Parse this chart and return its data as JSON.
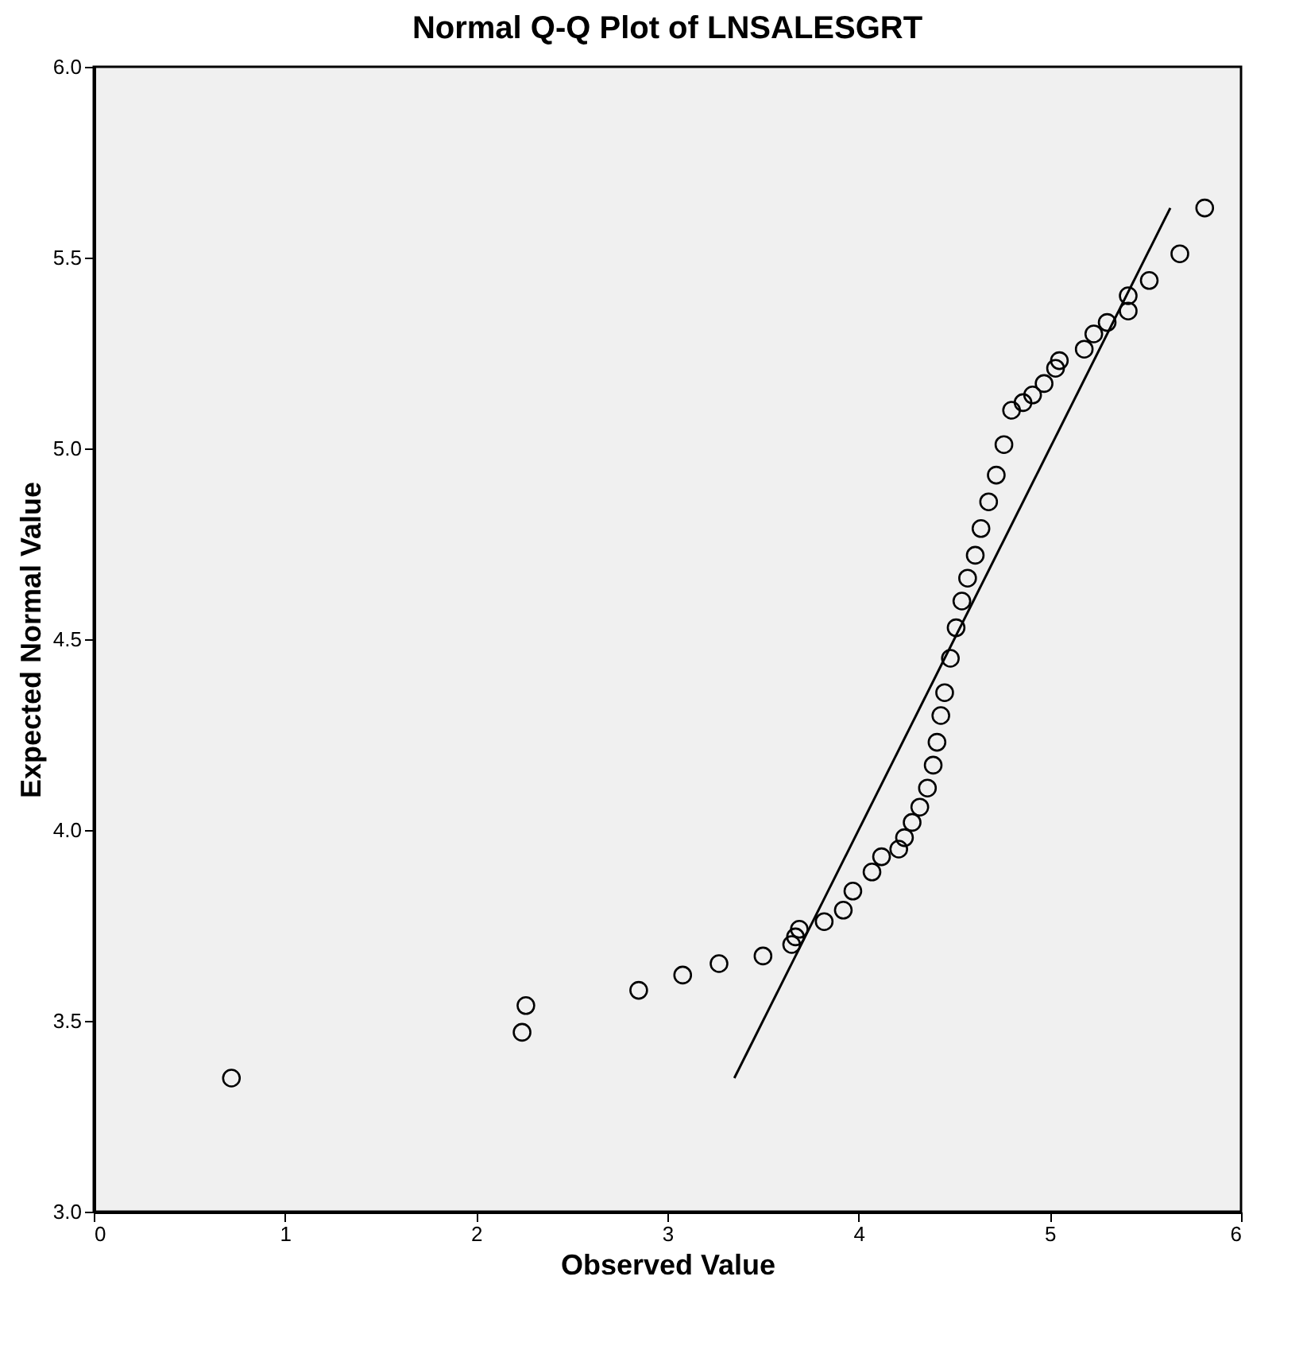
{
  "chart_data": {
    "type": "scatter",
    "title": "Normal Q-Q Plot of LNSALESGRT",
    "xlabel": "Observed Value",
    "ylabel": "Expected Normal Value",
    "xlim": [
      0,
      6
    ],
    "xticks": [
      0,
      1,
      2,
      3,
      4,
      5,
      6
    ],
    "ylim": [
      3,
      6
    ],
    "yticks": [
      {
        "value": 3,
        "label": "3.0"
      },
      {
        "value": 3.5,
        "label": "3.5"
      },
      {
        "value": 4,
        "label": "4.0"
      },
      {
        "value": 4.5,
        "label": "4.5"
      },
      {
        "value": 5,
        "label": "5.0"
      },
      {
        "value": 5.5,
        "label": "5.5"
      },
      {
        "value": 6,
        "label": "6.0"
      }
    ],
    "marker": "circle",
    "series": [
      {
        "color": "#000000",
        "x": [
          0.72,
          2.24,
          2.26,
          2.85,
          3.08,
          3.27,
          3.5,
          3.65,
          3.67,
          3.69,
          3.82,
          3.92,
          3.97,
          4.07,
          4.12,
          4.21,
          4.24,
          4.28,
          4.32,
          4.36,
          4.39,
          4.41,
          4.43,
          4.45,
          4.48,
          4.51,
          4.54,
          4.57,
          4.61,
          4.64,
          4.68,
          4.72,
          4.76,
          4.8,
          4.86,
          4.91,
          4.97,
          5.03,
          5.05,
          5.18,
          5.23,
          5.3,
          5.41,
          5.41,
          5.52,
          5.68,
          5.81
        ],
        "values": [
          3.35,
          3.47,
          3.54,
          3.58,
          3.62,
          3.65,
          3.67,
          3.7,
          3.72,
          3.74,
          3.76,
          3.79,
          3.84,
          3.89,
          3.93,
          3.95,
          3.98,
          4.02,
          4.06,
          4.11,
          4.17,
          4.23,
          4.3,
          4.36,
          4.45,
          4.53,
          4.6,
          4.66,
          4.72,
          4.79,
          4.86,
          4.93,
          5.01,
          5.1,
          5.12,
          5.14,
          5.17,
          5.21,
          5.23,
          5.26,
          5.3,
          5.33,
          5.36,
          5.4,
          5.44,
          5.51,
          5.63
        ]
      },
      {
        "type": "line",
        "marker": "none",
        "color": "#000000",
        "x": [
          3.35,
          5.63
        ],
        "values": [
          3.35,
          5.63
        ]
      }
    ]
  }
}
